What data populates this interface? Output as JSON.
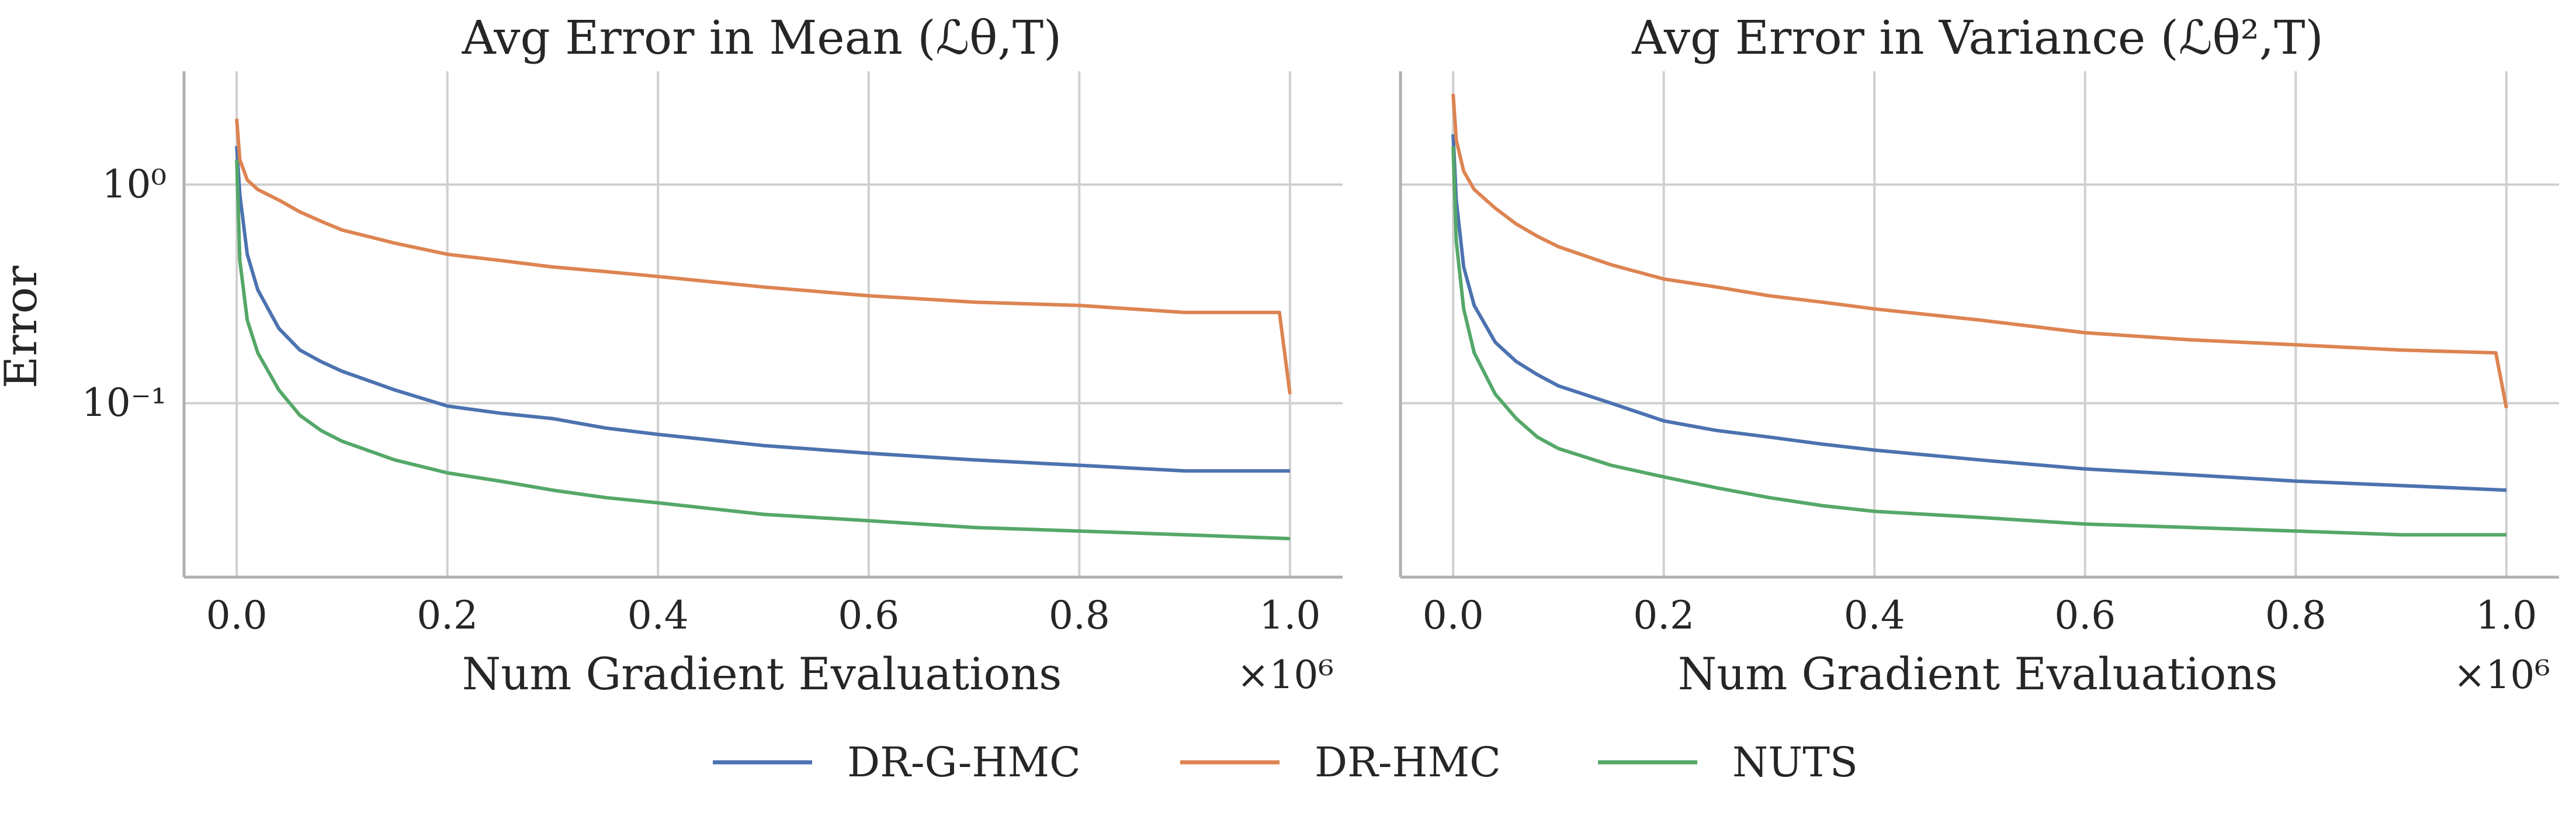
{
  "chart_data": [
    {
      "type": "line",
      "title": "Avg Error in Mean (ℒθ,T)",
      "xlabel": "Num Gradient Evaluations",
      "ylabel": "Error",
      "x_multiplier": "×10⁶",
      "xscale": "linear",
      "yscale": "log",
      "xlim": [
        -0.05,
        1.05
      ],
      "ylim": [
        0.016,
        3.3
      ],
      "xticks": [
        0.0,
        0.2,
        0.4,
        0.6,
        0.8,
        1.0
      ],
      "xtick_labels": [
        "0.0",
        "0.2",
        "0.4",
        "0.6",
        "0.8",
        "1.0"
      ],
      "yticks": [
        0.1,
        1.0
      ],
      "ytick_labels": [
        "10⁻¹",
        "10⁰"
      ],
      "grid": true,
      "series": [
        {
          "name": "DR-G-HMC",
          "color": "#4c72b0",
          "x": [
            0.0,
            0.003,
            0.01,
            0.02,
            0.04,
            0.06,
            0.08,
            0.1,
            0.15,
            0.2,
            0.25,
            0.3,
            0.35,
            0.4,
            0.5,
            0.6,
            0.7,
            0.8,
            0.9,
            1.0
          ],
          "y": [
            1.5,
            0.9,
            0.48,
            0.33,
            0.22,
            0.175,
            0.155,
            0.14,
            0.115,
            0.097,
            0.09,
            0.085,
            0.077,
            0.072,
            0.064,
            0.059,
            0.055,
            0.052,
            0.049,
            0.049
          ]
        },
        {
          "name": "DR-HMC",
          "color": "#dd8452",
          "x": [
            0.0,
            0.003,
            0.01,
            0.02,
            0.04,
            0.06,
            0.08,
            0.1,
            0.15,
            0.2,
            0.25,
            0.3,
            0.35,
            0.4,
            0.5,
            0.6,
            0.7,
            0.8,
            0.9,
            0.99,
            1.0
          ],
          "y": [
            2.0,
            1.3,
            1.05,
            0.95,
            0.85,
            0.75,
            0.68,
            0.62,
            0.54,
            0.48,
            0.45,
            0.42,
            0.4,
            0.38,
            0.34,
            0.31,
            0.29,
            0.28,
            0.26,
            0.26,
            0.11
          ]
        },
        {
          "name": "NUTS",
          "color": "#55a868",
          "x": [
            0.0,
            0.003,
            0.01,
            0.02,
            0.04,
            0.06,
            0.08,
            0.1,
            0.15,
            0.2,
            0.25,
            0.3,
            0.35,
            0.4,
            0.5,
            0.6,
            0.7,
            0.8,
            0.9,
            1.0
          ],
          "y": [
            1.3,
            0.45,
            0.24,
            0.17,
            0.115,
            0.088,
            0.075,
            0.067,
            0.055,
            0.048,
            0.044,
            0.04,
            0.037,
            0.035,
            0.031,
            0.029,
            0.027,
            0.026,
            0.025,
            0.024
          ]
        }
      ]
    },
    {
      "type": "line",
      "title": "Avg Error in Variance (ℒθ²,T)",
      "xlabel": "Num Gradient Evaluations",
      "ylabel": "",
      "x_multiplier": "×10⁶",
      "xscale": "linear",
      "yscale": "log",
      "xlim": [
        -0.05,
        1.05
      ],
      "ylim": [
        0.016,
        3.3
      ],
      "xticks": [
        0.0,
        0.2,
        0.4,
        0.6,
        0.8,
        1.0
      ],
      "xtick_labels": [
        "0.0",
        "0.2",
        "0.4",
        "0.6",
        "0.8",
        "1.0"
      ],
      "yticks": [
        0.1,
        1.0
      ],
      "ytick_labels": [],
      "grid": true,
      "series": [
        {
          "name": "DR-G-HMC",
          "color": "#4c72b0",
          "x": [
            0.0,
            0.003,
            0.01,
            0.02,
            0.04,
            0.06,
            0.08,
            0.1,
            0.15,
            0.2,
            0.25,
            0.3,
            0.35,
            0.4,
            0.5,
            0.6,
            0.7,
            0.8,
            0.9,
            1.0
          ],
          "y": [
            1.7,
            0.85,
            0.42,
            0.28,
            0.19,
            0.155,
            0.135,
            0.12,
            0.1,
            0.083,
            0.075,
            0.07,
            0.065,
            0.061,
            0.055,
            0.05,
            0.047,
            0.044,
            0.042,
            0.04
          ]
        },
        {
          "name": "DR-HMC",
          "color": "#dd8452",
          "x": [
            0.0,
            0.003,
            0.01,
            0.02,
            0.04,
            0.06,
            0.08,
            0.1,
            0.15,
            0.2,
            0.25,
            0.3,
            0.35,
            0.4,
            0.5,
            0.6,
            0.7,
            0.8,
            0.9,
            0.99,
            1.0
          ],
          "y": [
            2.6,
            1.6,
            1.15,
            0.95,
            0.78,
            0.66,
            0.58,
            0.52,
            0.43,
            0.37,
            0.34,
            0.31,
            0.29,
            0.27,
            0.24,
            0.21,
            0.195,
            0.185,
            0.175,
            0.17,
            0.095
          ]
        },
        {
          "name": "NUTS",
          "color": "#55a868",
          "x": [
            0.0,
            0.003,
            0.01,
            0.02,
            0.04,
            0.06,
            0.08,
            0.1,
            0.15,
            0.2,
            0.25,
            0.3,
            0.35,
            0.4,
            0.5,
            0.6,
            0.7,
            0.8,
            0.9,
            1.0
          ],
          "y": [
            1.5,
            0.55,
            0.27,
            0.17,
            0.11,
            0.085,
            0.07,
            0.062,
            0.052,
            0.046,
            0.041,
            0.037,
            0.034,
            0.032,
            0.03,
            0.028,
            0.027,
            0.026,
            0.025,
            0.025
          ]
        }
      ]
    }
  ],
  "legend": {
    "placement": "bottom-center",
    "items": [
      {
        "label": "DR-G-HMC",
        "color": "#4c72b0"
      },
      {
        "label": "DR-HMC",
        "color": "#dd8452"
      },
      {
        "label": "NUTS",
        "color": "#55a868"
      }
    ]
  }
}
